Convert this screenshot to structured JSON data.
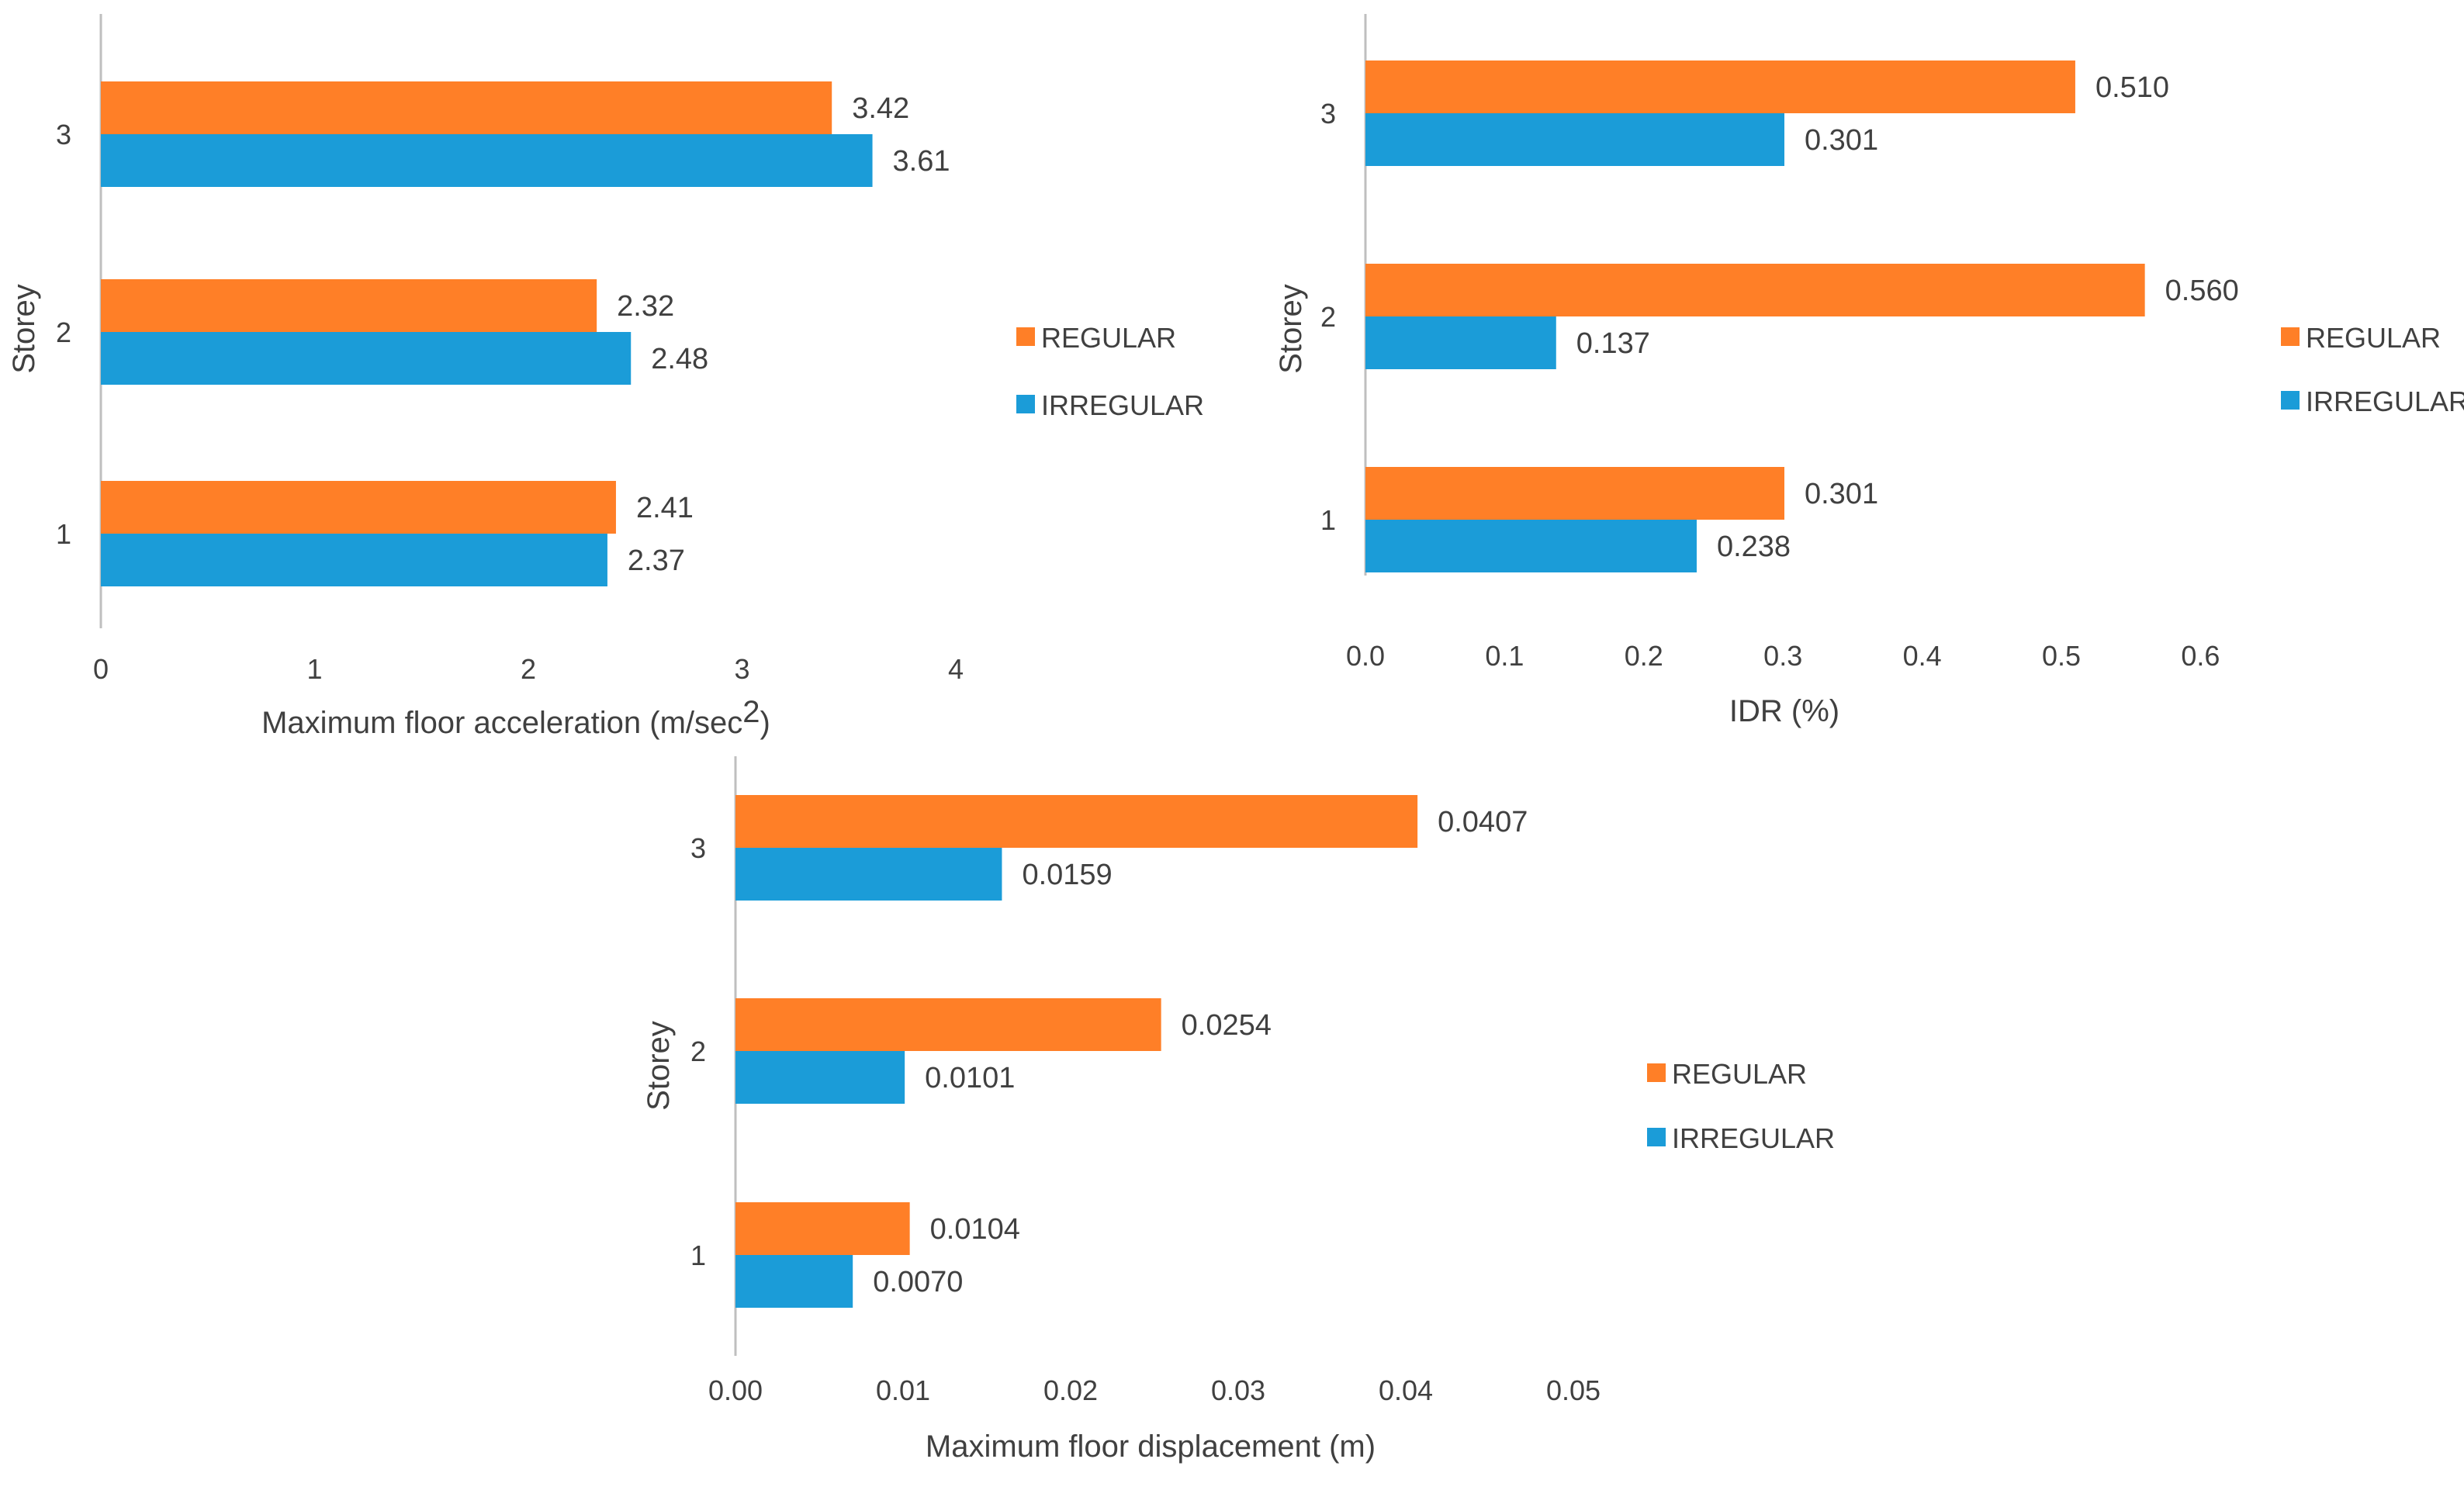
{
  "colors": {
    "regular": "#FF7F27",
    "irregular": "#1B9CD8",
    "axis": "#BFBFBF",
    "text": "#404040"
  },
  "chart_data": [
    {
      "type": "bar",
      "orientation": "horizontal",
      "title": "",
      "ylabel": "Storey",
      "xlabel": "Maximum floor acceleration (m/sec",
      "xlabel_sup": "2",
      "xlabel_close": ")",
      "categories": [
        "1",
        "2",
        "3"
      ],
      "xlim": [
        0,
        4
      ],
      "xticks": [
        "0",
        "1",
        "2",
        "3",
        "4"
      ],
      "xtick_values": [
        0,
        1,
        2,
        3,
        4
      ],
      "legend_position": "right",
      "series": [
        {
          "name": "REGULAR",
          "values": [
            2.41,
            2.32,
            3.42
          ],
          "labels": [
            "2.41",
            "2.32",
            "3.42"
          ]
        },
        {
          "name": "IRREGULAR",
          "values": [
            2.37,
            2.48,
            3.61
          ],
          "labels": [
            "2.37",
            "2.48",
            "3.61"
          ]
        }
      ]
    },
    {
      "type": "bar",
      "orientation": "horizontal",
      "title": "",
      "ylabel": "Storey",
      "xlabel": "IDR (%)",
      "categories": [
        "1",
        "2",
        "3"
      ],
      "xlim": [
        0,
        0.6
      ],
      "xticks": [
        "0.0",
        "0.1",
        "0.2",
        "0.3",
        "0.4",
        "0.5",
        "0.6"
      ],
      "xtick_values": [
        0,
        0.1,
        0.2,
        0.3,
        0.4,
        0.5,
        0.6
      ],
      "legend_position": "right",
      "series": [
        {
          "name": "REGULAR",
          "values": [
            0.301,
            0.56,
            0.51
          ],
          "labels": [
            "0.301",
            "0.560",
            "0.510"
          ]
        },
        {
          "name": "IRREGULAR",
          "values": [
            0.238,
            0.137,
            0.301
          ],
          "labels": [
            "0.238",
            "0.137",
            "0.301"
          ]
        }
      ]
    },
    {
      "type": "bar",
      "orientation": "horizontal",
      "title": "",
      "ylabel": "Storey",
      "xlabel": "Maximum floor displacement (m)",
      "categories": [
        "1",
        "2",
        "3"
      ],
      "xlim": [
        0,
        0.05
      ],
      "xticks": [
        "0.00",
        "0.01",
        "0.02",
        "0.03",
        "0.04",
        "0.05"
      ],
      "xtick_values": [
        0,
        0.01,
        0.02,
        0.03,
        0.04,
        0.05
      ],
      "legend_position": "right",
      "series": [
        {
          "name": "REGULAR",
          "values": [
            0.0104,
            0.0254,
            0.0407
          ],
          "labels": [
            "0.0104",
            "0.0254",
            "0.0407"
          ]
        },
        {
          "name": "IRREGULAR",
          "values": [
            0.007,
            0.0101,
            0.0159
          ],
          "labels": [
            "0.0070",
            "0.0101",
            "0.0159"
          ]
        }
      ]
    }
  ]
}
